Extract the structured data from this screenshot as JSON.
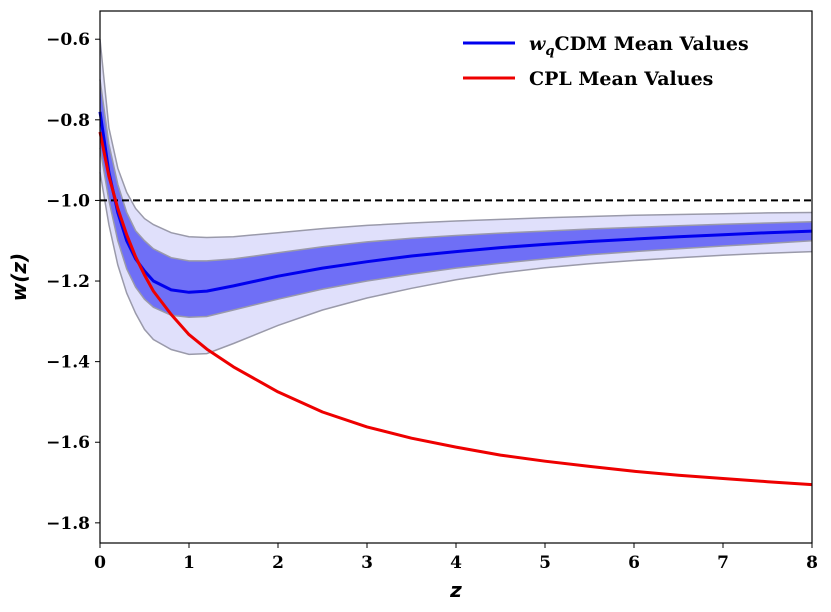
{
  "chart_data": {
    "type": "line",
    "xlabel": "z",
    "ylabel": "w(z)",
    "xlim": [
      0,
      8
    ],
    "ylim": [
      -1.85,
      -0.53
    ],
    "xticks": [
      "0",
      "1",
      "2",
      "3",
      "4",
      "5",
      "6",
      "7",
      "8"
    ],
    "yticks": [
      "−1.8",
      "−1.6",
      "−1.4",
      "−1.2",
      "−1.0",
      "−0.8",
      "−0.6"
    ],
    "reference_line": {
      "y": -1.0,
      "style": "dashed",
      "color": "#000000"
    },
    "legend": {
      "placement": "top-right",
      "entries": [
        {
          "label_italic": "w",
          "label_sub": "q",
          "label_rest": "CDM Mean Values",
          "color": "#0000ee"
        },
        {
          "label": "CPL Mean Values",
          "color": "#ee0000"
        }
      ]
    },
    "x": [
      0,
      0.1,
      0.2,
      0.3,
      0.4,
      0.5,
      0.6,
      0.8,
      1.0,
      1.2,
      1.5,
      2.0,
      2.5,
      3.0,
      3.5,
      4.0,
      4.5,
      5.0,
      5.5,
      6.0,
      6.5,
      7.0,
      7.5,
      8.0
    ],
    "series": [
      {
        "name": "wqCDM Mean Values",
        "color": "#0000ee",
        "y": [
          -0.78,
          -0.93,
          -1.03,
          -1.1,
          -1.145,
          -1.175,
          -1.2,
          -1.222,
          -1.228,
          -1.225,
          -1.212,
          -1.188,
          -1.168,
          -1.152,
          -1.138,
          -1.127,
          -1.117,
          -1.109,
          -1.102,
          -1.096,
          -1.09,
          -1.085,
          -1.08,
          -1.076
        ],
        "band_1sigma": {
          "color": "#6f6ff6",
          "upper": [
            -0.7,
            -0.86,
            -0.96,
            -1.03,
            -1.075,
            -1.1,
            -1.12,
            -1.142,
            -1.15,
            -1.15,
            -1.145,
            -1.13,
            -1.115,
            -1.103,
            -1.094,
            -1.087,
            -1.081,
            -1.076,
            -1.071,
            -1.067,
            -1.063,
            -1.059,
            -1.056,
            -1.053
          ],
          "lower": [
            -0.87,
            -1.0,
            -1.1,
            -1.17,
            -1.215,
            -1.245,
            -1.265,
            -1.285,
            -1.29,
            -1.288,
            -1.272,
            -1.245,
            -1.22,
            -1.2,
            -1.183,
            -1.168,
            -1.156,
            -1.145,
            -1.135,
            -1.127,
            -1.12,
            -1.113,
            -1.107,
            -1.1
          ]
        },
        "band_2sigma": {
          "color": "#e0e0fb",
          "upper": [
            -0.6,
            -0.82,
            -0.92,
            -0.98,
            -1.02,
            -1.045,
            -1.06,
            -1.08,
            -1.09,
            -1.092,
            -1.09,
            -1.08,
            -1.07,
            -1.062,
            -1.056,
            -1.051,
            -1.047,
            -1.043,
            -1.04,
            -1.037,
            -1.035,
            -1.033,
            -1.031,
            -1.03
          ],
          "lower": [
            -0.93,
            -1.06,
            -1.16,
            -1.23,
            -1.28,
            -1.32,
            -1.345,
            -1.37,
            -1.382,
            -1.38,
            -1.355,
            -1.31,
            -1.272,
            -1.242,
            -1.218,
            -1.197,
            -1.18,
            -1.167,
            -1.157,
            -1.149,
            -1.142,
            -1.136,
            -1.131,
            -1.127
          ]
        }
      },
      {
        "name": "CPL Mean Values",
        "color": "#ee0000",
        "y": [
          -0.83,
          -0.94,
          -1.02,
          -1.085,
          -1.14,
          -1.185,
          -1.225,
          -1.283,
          -1.333,
          -1.369,
          -1.413,
          -1.475,
          -1.525,
          -1.562,
          -1.59,
          -1.612,
          -1.632,
          -1.647,
          -1.66,
          -1.672,
          -1.682,
          -1.69,
          -1.698,
          -1.705
        ]
      }
    ]
  }
}
